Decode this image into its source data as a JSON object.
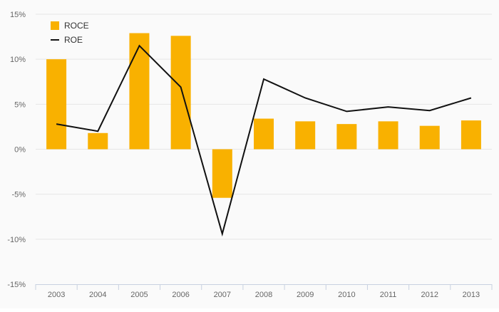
{
  "chart_data": {
    "type": "bar",
    "categories": [
      "2003",
      "2004",
      "2005",
      "2006",
      "2007",
      "2008",
      "2009",
      "2010",
      "2011",
      "2012",
      "2013"
    ],
    "series": [
      {
        "name": "ROCE",
        "type": "bar",
        "color": "#f9b100",
        "values": [
          10.0,
          1.8,
          12.9,
          12.6,
          -5.4,
          3.4,
          3.1,
          2.8,
          3.1,
          2.6,
          3.2
        ]
      },
      {
        "name": "ROE",
        "type": "line",
        "color": "#111111",
        "values": [
          2.8,
          2.0,
          11.5,
          6.9,
          -9.4,
          7.8,
          5.7,
          4.2,
          4.7,
          4.3,
          5.7
        ]
      }
    ],
    "ylim": [
      -15,
      15
    ],
    "yticks": [
      -15,
      -10,
      -5,
      0,
      5,
      10,
      15
    ],
    "ytick_labels": [
      "-15%",
      "-10%",
      "-5%",
      "0%",
      "5%",
      "10%",
      "15%"
    ],
    "grid": true,
    "legend": "top-left",
    "title": "",
    "xlabel": "",
    "ylabel": ""
  }
}
